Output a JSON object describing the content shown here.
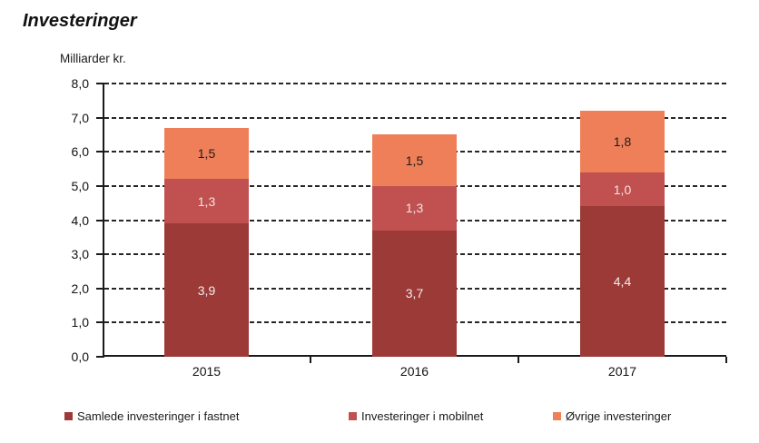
{
  "title": "Investeringer",
  "chart_data": {
    "type": "bar",
    "subtype": "stacked",
    "title": "Investeringer",
    "xlabel": "",
    "ylabel": "Milliarder kr.",
    "ylim": [
      0,
      8
    ],
    "ytick_step": 1,
    "ytick_labels": [
      "0,0",
      "1,0",
      "2,0",
      "3,0",
      "4,0",
      "5,0",
      "6,0",
      "7,0",
      "8,0"
    ],
    "grid": "horizontal-dashed",
    "legend_position": "bottom",
    "categories": [
      "2015",
      "2016",
      "2017"
    ],
    "series": [
      {
        "key": "fastnet",
        "name": "Samlede investeringer i fastnet",
        "color": "#9C3A38",
        "label_color": "#F2ECEA",
        "values": [
          3.9,
          3.7,
          4.4
        ],
        "labels": [
          "3,9",
          "3,7",
          "4,4"
        ]
      },
      {
        "key": "mobilnet",
        "name": "Investeringer i mobilnet",
        "color": "#C05150",
        "label_color": "#F2E4E2",
        "values": [
          1.3,
          1.3,
          1.0
        ],
        "labels": [
          "1,3",
          "1,3",
          "1,0"
        ]
      },
      {
        "key": "ovrige",
        "name": "Øvrige investeringer",
        "color": "#EE7F58",
        "label_color": "#221C19",
        "values": [
          1.5,
          1.5,
          1.8
        ],
        "labels": [
          "1,5",
          "1,5",
          "1,8"
        ]
      }
    ]
  }
}
